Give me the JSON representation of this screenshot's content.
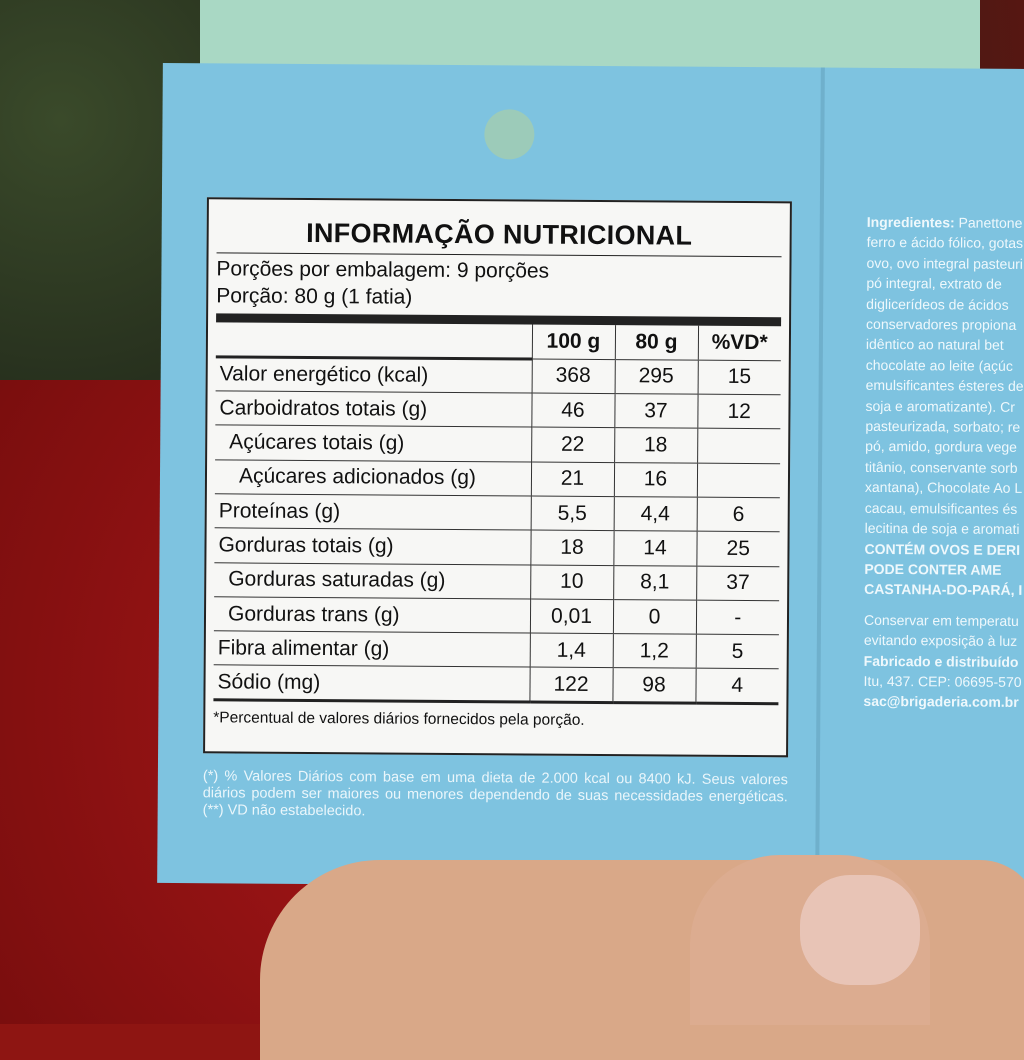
{
  "label": {
    "title": "INFORMAÇÃO NUTRICIONAL",
    "servings_per_package": "Porções por embalagem: 9 porções",
    "serving_size": "Porção: 80 g (1 fatia)",
    "columns": [
      "",
      "100 g",
      "80 g",
      "%VD*"
    ],
    "rows": [
      {
        "name": "Valor energético (kcal)",
        "per100": "368",
        "per80": "295",
        "vd": "15",
        "indent": 0
      },
      {
        "name": "Carboidratos totais (g)",
        "per100": "46",
        "per80": "37",
        "vd": "12",
        "indent": 0
      },
      {
        "name": "Açúcares totais (g)",
        "per100": "22",
        "per80": "18",
        "vd": "",
        "indent": 1
      },
      {
        "name": "Açúcares adicionados (g)",
        "per100": "21",
        "per80": "16",
        "vd": "",
        "indent": 2
      },
      {
        "name": "Proteínas (g)",
        "per100": "5,5",
        "per80": "4,4",
        "vd": "6",
        "indent": 0
      },
      {
        "name": "Gorduras totais (g)",
        "per100": "18",
        "per80": "14",
        "vd": "25",
        "indent": 0
      },
      {
        "name": "Gorduras saturadas (g)",
        "per100": "10",
        "per80": "8,1",
        "vd": "37",
        "indent": 1
      },
      {
        "name": "Gorduras trans (g)",
        "per100": "0,01",
        "per80": "0",
        "vd": "-",
        "indent": 1
      },
      {
        "name": "Fibra alimentar (g)",
        "per100": "1,4",
        "per80": "1,2",
        "vd": "5",
        "indent": 0
      },
      {
        "name": "Sódio (mg)",
        "per100": "122",
        "per80": "98",
        "vd": "4",
        "indent": 0
      }
    ],
    "footnote": "*Percentual de valores diários fornecidos pela porção."
  },
  "daily_values_note": "(*) % Valores Diários com base em uma dieta de 2.000 kcal ou 8400 kJ. Seus valores diários podem ser maiores ou menores dependendo de suas necessidades energéticas. (**) VD não estabelecido.",
  "ingredients": {
    "heading": "Ingredientes:",
    "lines": [
      "Panettone",
      "ferro e ácido fólico, gotas",
      "ovo, ovo integral pasteuri",
      "pó integral, extrato de",
      "diglicerídeos de ácidos",
      "conservadores propiona",
      "idêntico ao natural bet",
      "chocolate ao leite (açúc",
      "emulsificantes ésteres de",
      "soja e aromatizante). Cr",
      "pasteurizada, sorbato; re",
      "pó, amido, gordura vege",
      "titânio, conservante sorb",
      "xantana), Chocolate Ao L",
      "cacau, emulsificantes és",
      "lecitina de soja e aromati"
    ],
    "allergens": [
      "CONTÉM OVOS E DERI",
      "PODE CONTER AME",
      "CASTANHA-DO-PARÁ, I"
    ],
    "storage": [
      "Conservar em temperatu",
      "evitando exposição à luz"
    ],
    "manufacturer": "Fabricado e distribuído",
    "address": "Itu, 437. CEP: 06695-570",
    "email": "sac@brigaderia.com.br"
  }
}
